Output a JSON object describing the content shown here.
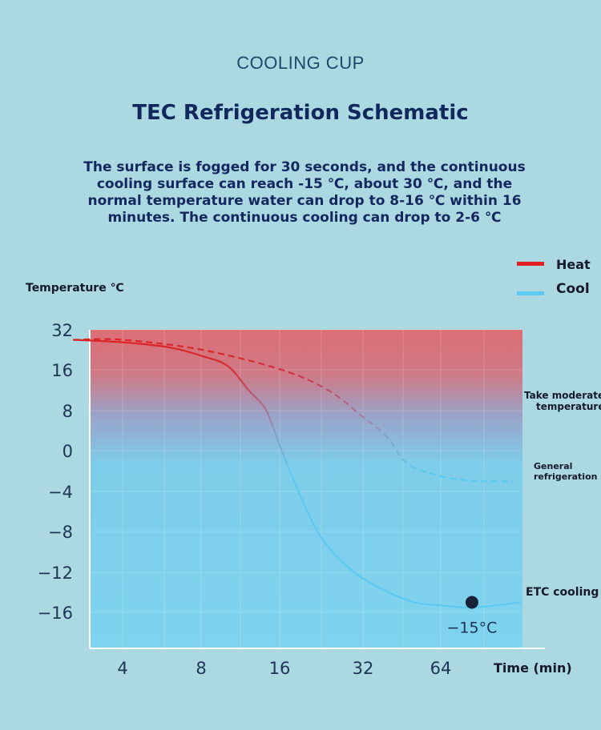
{
  "header": {
    "brand": "COOLING CUP",
    "title": "TEC Refrigeration Schematic",
    "description": "The surface is fogged for 30 seconds, and the continuous cooling surface can reach -15 ℃, about 30 ℃, and the normal temperature water can drop to 8-16 ℃ within 16 minutes. The continuous cooling can drop to 2-6 ℃"
  },
  "colors": {
    "heat": "#e02020",
    "cool": "#5ccaf0",
    "background": "#acd8e1",
    "title": "#10285c"
  },
  "chart_data": {
    "type": "line",
    "ylabel": "Temperature ℃",
    "xlabel": "Time (min)",
    "x_ticks": [
      "4",
      "8",
      "16",
      "32",
      "64"
    ],
    "y_ticks": [
      "32",
      "16",
      "8",
      "0",
      "−4",
      "−8",
      "−12",
      "−16"
    ],
    "legend": [
      {
        "name": "Heat",
        "color": "#e02020"
      },
      {
        "name": "Cool",
        "color": "#5ccaf0"
      }
    ],
    "legend_position": "top-right",
    "grid": true,
    "series": [
      {
        "id": "etc",
        "style": "solid",
        "label": "ETC cooling",
        "x": [
          2.6,
          4,
          6,
          8,
          10,
          12,
          14,
          16,
          20,
          24,
          32,
          48,
          64,
          80,
          96,
          128
        ],
        "y": [
          28,
          27,
          25,
          21.5,
          17.5,
          12,
          8,
          0,
          -6,
          -9.5,
          -12.5,
          -14.8,
          -15.3,
          -15.5,
          -15.4,
          -15
        ]
      },
      {
        "id": "general",
        "style": "dashed",
        "label": "General refrigeration",
        "x": [
          2.6,
          4,
          8,
          16,
          24,
          32,
          40,
          48,
          64,
          80,
          96,
          120
        ],
        "y": [
          28,
          28,
          24,
          16,
          12,
          7,
          2.8,
          -1.3,
          -2.5,
          -2.9,
          -3,
          -3
        ]
      }
    ],
    "annotations": {
      "moderate_label_1": "Take moderate",
      "moderate_label_2": "temperature",
      "general_label_1": "General",
      "general_label_2": "refrigeration",
      "etc_label": "ETC cooling",
      "min_point": {
        "x": 84,
        "y": -15,
        "text": "−15°C"
      }
    }
  }
}
